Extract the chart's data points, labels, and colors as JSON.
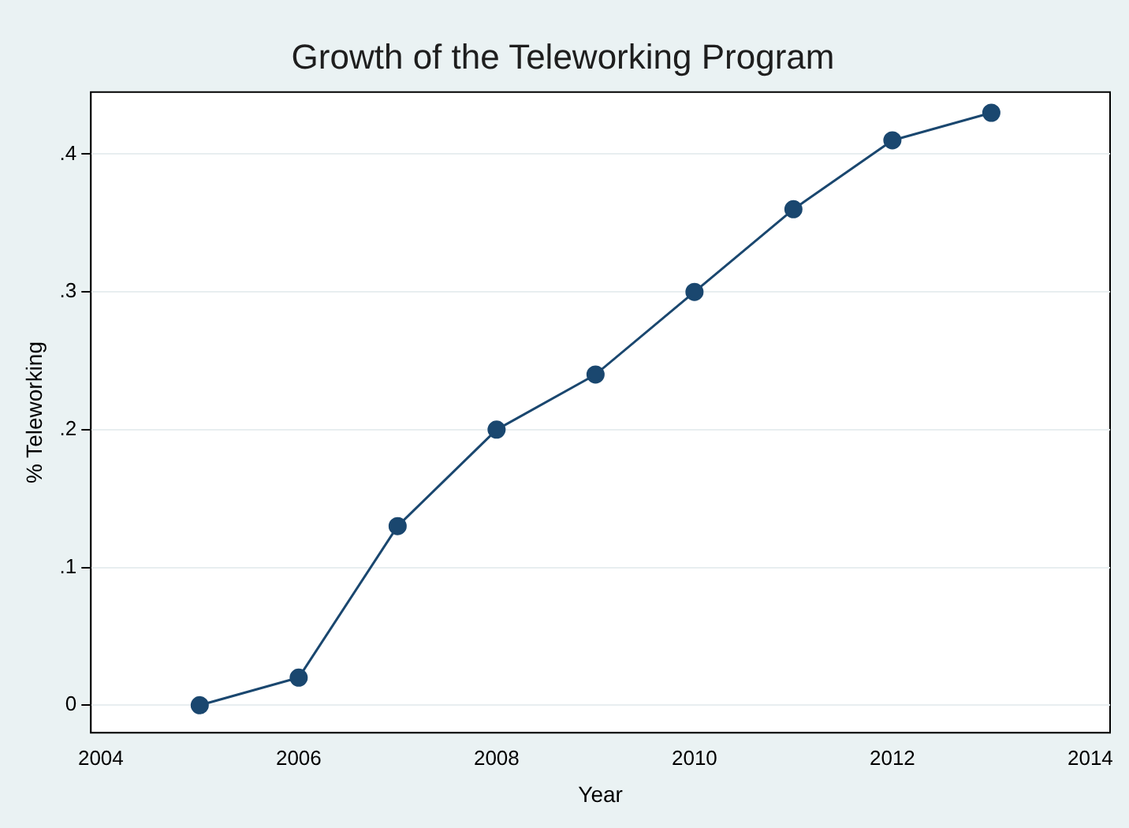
{
  "chart_data": {
    "type": "line",
    "title": "Growth of the Teleworking Program",
    "xlabel": "Year",
    "ylabel": "% Teleworking",
    "x": [
      2005,
      2006,
      2007,
      2008,
      2009,
      2010,
      2011,
      2012,
      2013
    ],
    "series": [
      {
        "color": "#1a476f",
        "values": [
          0,
          0.02,
          0.13,
          0.2,
          0.24,
          0.3,
          0.36,
          0.41,
          0.43
        ]
      }
    ],
    "xlim": [
      2003.9,
      2014.2
    ],
    "xticks": [
      2004,
      2006,
      2008,
      2010,
      2012,
      2014
    ],
    "ylim": [
      -0.02,
      0.445
    ],
    "yticks": [
      0,
      {
        "value": 0.1,
        "label": ".1"
      },
      {
        "value": 0.2,
        "label": ".2"
      },
      {
        "value": 0.3,
        "label": ".3"
      },
      {
        "value": 0.4,
        "label": ".4"
      }
    ],
    "grid": "y",
    "marker": "circle",
    "line_style": "solid",
    "legend": false
  }
}
